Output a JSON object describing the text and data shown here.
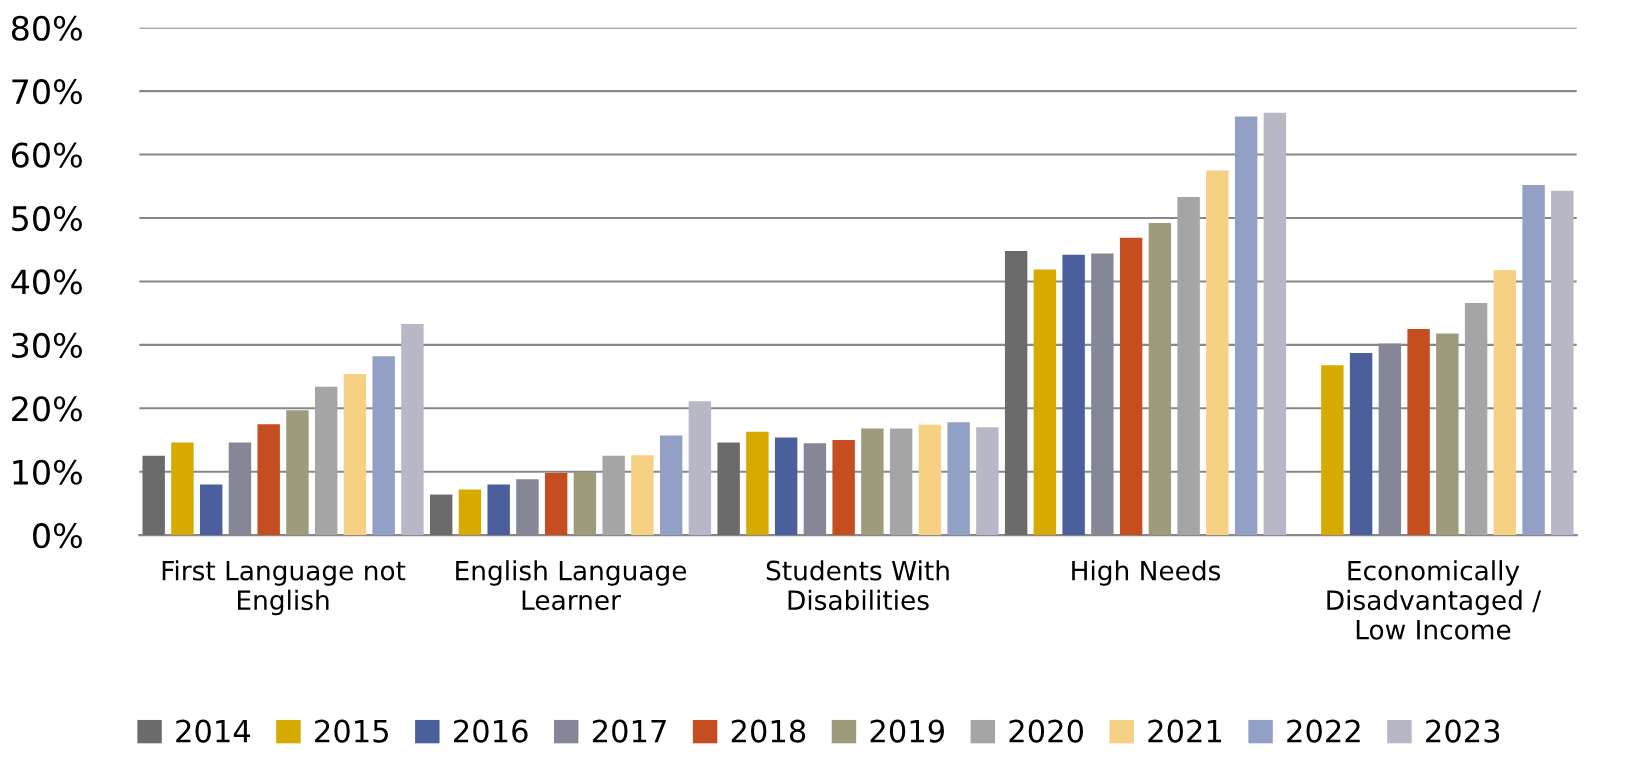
{
  "chart_data": {
    "type": "bar",
    "categories": [
      "First Language not English",
      "English Language Learner",
      "Students With Disabilities",
      "High Needs",
      "Economically Disadvantaged / Low Income"
    ],
    "series": [
      {
        "name": "2014",
        "color": "#6b6b6b",
        "values": [
          12.5,
          6.4,
          14.6,
          44.8,
          null
        ]
      },
      {
        "name": "2015",
        "color": "#d6aa00",
        "values": [
          14.6,
          7.2,
          16.3,
          41.9,
          26.8
        ]
      },
      {
        "name": "2016",
        "color": "#4a5f9c",
        "values": [
          8.0,
          8.0,
          15.4,
          44.2,
          28.7
        ]
      },
      {
        "name": "2017",
        "color": "#858796",
        "values": [
          14.6,
          8.8,
          14.5,
          44.4,
          30.2
        ]
      },
      {
        "name": "2018",
        "color": "#c44e20",
        "values": [
          17.5,
          9.8,
          15.0,
          46.9,
          32.5
        ]
      },
      {
        "name": "2019",
        "color": "#9d9b7c",
        "values": [
          19.7,
          10.0,
          16.8,
          49.2,
          31.8
        ]
      },
      {
        "name": "2020",
        "color": "#a5a5a5",
        "values": [
          23.4,
          12.5,
          16.8,
          53.3,
          36.6
        ]
      },
      {
        "name": "2021",
        "color": "#f6d083",
        "values": [
          25.4,
          12.6,
          17.4,
          57.5,
          41.8
        ]
      },
      {
        "name": "2022",
        "color": "#93a0c6",
        "values": [
          28.2,
          15.7,
          17.8,
          66.0,
          55.2
        ]
      },
      {
        "name": "2023",
        "color": "#b7b7c5",
        "values": [
          33.3,
          21.1,
          17.0,
          66.6,
          54.3
        ]
      }
    ],
    "ylim": [
      0,
      80
    ],
    "yticks": [
      {
        "value": 0,
        "label": "0%"
      },
      {
        "value": 10,
        "label": "10%"
      },
      {
        "value": 20,
        "label": "20%"
      },
      {
        "value": 30,
        "label": "30%"
      },
      {
        "value": 40,
        "label": "40%"
      },
      {
        "value": 50,
        "label": "50%"
      },
      {
        "value": 60,
        "label": "60%"
      },
      {
        "value": 70,
        "label": "70%"
      },
      {
        "value": 80,
        "label": "80%"
      }
    ],
    "grid": "y",
    "legend": "bottom"
  }
}
